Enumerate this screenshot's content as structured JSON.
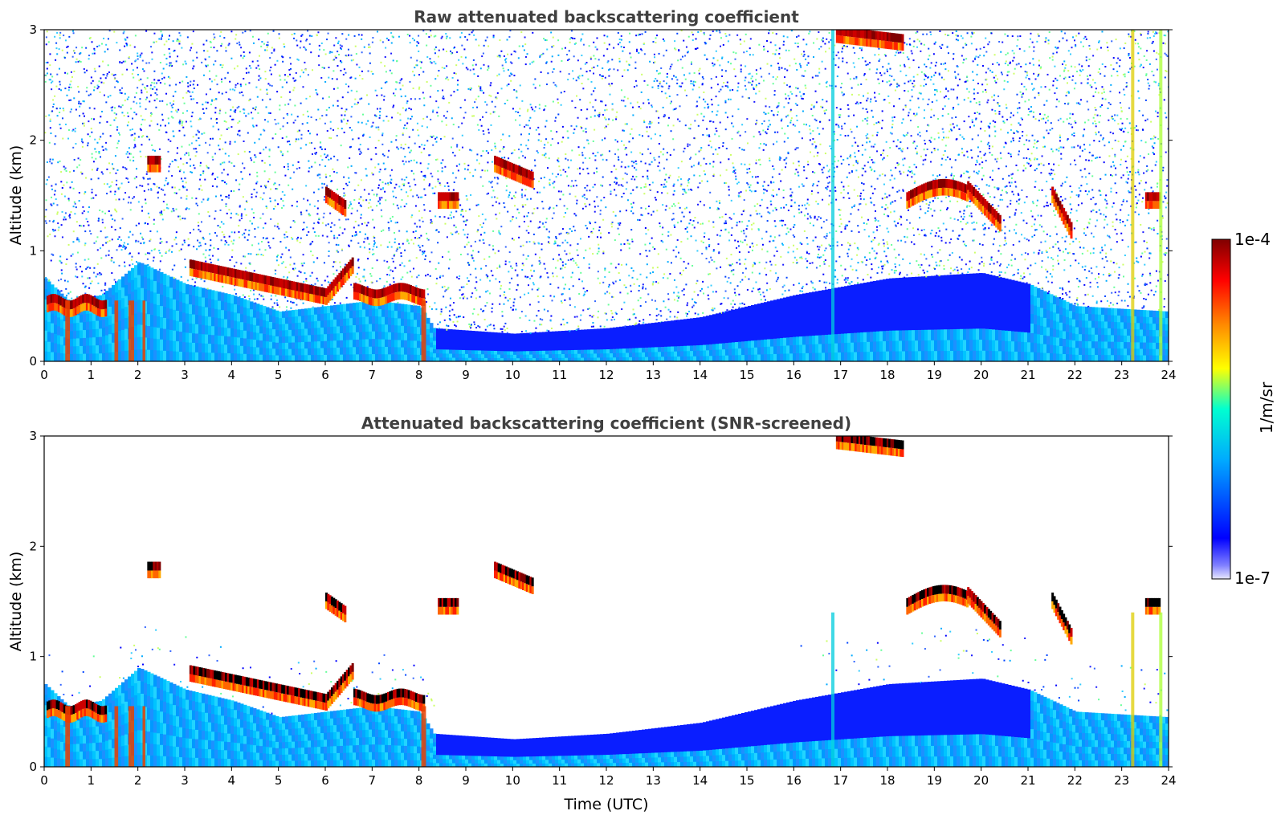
{
  "chart_data": [
    {
      "type": "heatmap",
      "title": "Raw attenuated backscattering coefficient",
      "xlabel": "",
      "ylabel": "Altitude (km)",
      "xlim": [
        0,
        24
      ],
      "ylim": [
        0,
        3
      ],
      "x_ticks": [
        "0",
        "1",
        "2",
        "3",
        "4",
        "5",
        "6",
        "7",
        "8",
        "9",
        "10",
        "11",
        "12",
        "13",
        "14",
        "15",
        "16",
        "17",
        "18",
        "19",
        "20",
        "21",
        "22",
        "23",
        "24"
      ],
      "y_ticks": [
        "0",
        "1",
        "2",
        "3"
      ],
      "features": [
        {
          "name": "boundary-layer-aerosol",
          "t_range": [
            0,
            24
          ],
          "alt_km": [
            0,
            0.9
          ]
        },
        {
          "name": "morning-low-cloud",
          "t_range": [
            3,
            8.2
          ],
          "alt_km": [
            0.4,
            1.0
          ]
        },
        {
          "name": "cloud-layer",
          "t_range": [
            18.3,
            20.3
          ],
          "alt_km": [
            1.35,
            1.65
          ]
        },
        {
          "name": "high-cloud",
          "t_range": [
            16.9,
            18.3
          ],
          "alt_km": [
            2.85,
            3.0
          ]
        }
      ]
    },
    {
      "type": "heatmap",
      "title": "Attenuated backscattering coefficient (SNR-screened)",
      "xlabel": "Time (UTC)",
      "ylabel": "Altitude (km)",
      "xlim": [
        0,
        24
      ],
      "ylim": [
        0,
        3
      ],
      "x_ticks": [
        "0",
        "1",
        "2",
        "3",
        "4",
        "5",
        "6",
        "7",
        "8",
        "9",
        "10",
        "11",
        "12",
        "13",
        "14",
        "15",
        "16",
        "17",
        "18",
        "19",
        "20",
        "21",
        "22",
        "23",
        "24"
      ],
      "y_ticks": [
        "0",
        "1",
        "2",
        "3"
      ],
      "features": [
        {
          "name": "boundary-layer-aerosol",
          "t_range": [
            0,
            24
          ],
          "alt_km": [
            0,
            0.9
          ]
        },
        {
          "name": "morning-low-cloud",
          "t_range": [
            3,
            8.2
          ],
          "alt_km": [
            0.4,
            1.0
          ]
        },
        {
          "name": "cloud-layer",
          "t_range": [
            18.3,
            20.3
          ],
          "alt_km": [
            1.35,
            1.65
          ]
        }
      ]
    }
  ],
  "colorbar": {
    "label": "1/m/sr",
    "max_label": "1e-4",
    "min_label": "1e-7",
    "range": [
      1e-07,
      0.0001
    ],
    "scale": "log",
    "colormap": "jet",
    "colors": [
      "#e8e8ff",
      "#0000ff",
      "#00aaff",
      "#00ffd0",
      "#ffff00",
      "#ff8800",
      "#ff0000",
      "#800000"
    ]
  }
}
